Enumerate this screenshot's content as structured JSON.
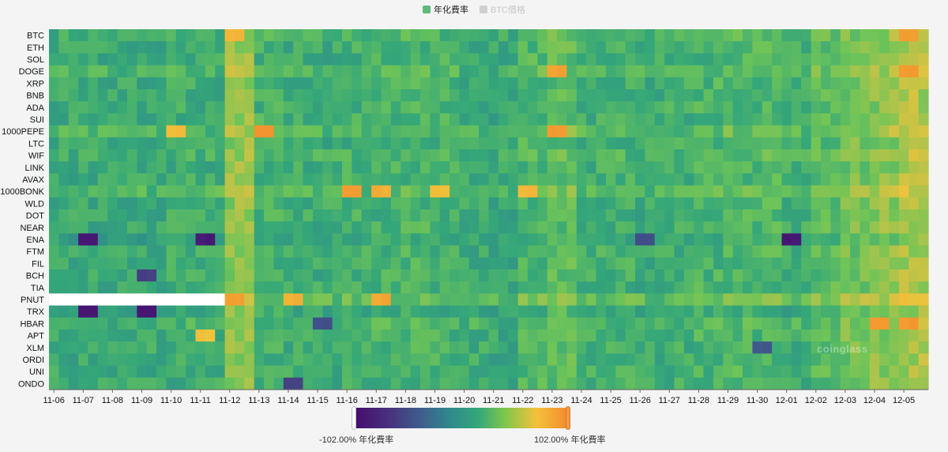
{
  "legend": {
    "funding_label": "年化費率",
    "btc_label": "BTC價格",
    "funding_color": "#5fba7d",
    "btc_color": "#d0d0d0"
  },
  "visual_map": {
    "min_label": "-102.00% 年化費率",
    "max_label": "102.00% 年化費率",
    "min_value": -102,
    "max_value": 102
  },
  "watermark": "coinglass",
  "chart_data": {
    "type": "heatmap",
    "title": "",
    "xlabel": "",
    "ylabel": "",
    "value_unit": "% 年化費率",
    "value_range": [
      -102,
      102
    ],
    "x_tick_labels": [
      "11-06",
      "11-07",
      "11-08",
      "11-09",
      "11-10",
      "11-11",
      "11-12",
      "11-13",
      "11-14",
      "11-15",
      "11-16",
      "11-17",
      "11-18",
      "11-19",
      "11-20",
      "11-21",
      "11-22",
      "11-23",
      "11-24",
      "11-25",
      "11-26",
      "11-27",
      "11-28",
      "11-29",
      "11-30",
      "12-01",
      "12-02",
      "12-03",
      "12-04",
      "12-05"
    ],
    "y_categories": [
      "BTC",
      "ETH",
      "SOL",
      "DOGE",
      "XRP",
      "BNB",
      "ADA",
      "SUI",
      "1000PEPE",
      "LTC",
      "WIF",
      "LINK",
      "AVAX",
      "1000BONK",
      "WLD",
      "DOT",
      "NEAR",
      "ENA",
      "FTM",
      "FIL",
      "BCH",
      "TIA",
      "PNUT",
      "TRX",
      "HBAR",
      "APT",
      "XLM",
      "ORDI",
      "UNI",
      "ONDO"
    ],
    "columns_per_day": 3,
    "typical_value": 11,
    "daily_level": [
      11,
      11,
      11,
      11,
      13,
      13,
      38,
      16,
      13,
      12,
      15,
      16,
      18,
      16,
      12,
      10,
      20,
      24,
      15,
      16,
      12,
      15,
      18,
      20,
      20,
      14,
      24,
      30,
      36,
      44
    ],
    "row_offsets": {
      "BTC": 3,
      "DOGE": 6,
      "1000PEPE": 8,
      "1000BONK": 8,
      "WIF": 4,
      "PNUT": 12,
      "HBAR": 4,
      "ENA": -6,
      "TRX": -4
    },
    "highlights": [
      {
        "coin": "BTC",
        "date": "11-12",
        "value": 70
      },
      {
        "coin": "BTC",
        "date": "12-05",
        "value": 88
      },
      {
        "coin": "DOGE",
        "date": "11-23",
        "value": 86
      },
      {
        "coin": "DOGE",
        "date": "12-05",
        "value": 88
      },
      {
        "coin": "1000PEPE",
        "date": "11-13",
        "value": 92
      },
      {
        "coin": "1000PEPE",
        "date": "11-23",
        "value": 92
      },
      {
        "coin": "1000PEPE",
        "date": "11-10",
        "value": 66
      },
      {
        "coin": "1000BONK",
        "date": "11-16",
        "value": 88
      },
      {
        "coin": "1000BONK",
        "date": "11-17",
        "value": 78
      },
      {
        "coin": "1000BONK",
        "date": "11-19",
        "value": 64
      },
      {
        "coin": "1000BONK",
        "date": "11-22",
        "value": 68
      },
      {
        "coin": "PNUT",
        "date": "11-12",
        "value": 84
      },
      {
        "coin": "PNUT",
        "date": "11-14",
        "value": 76
      },
      {
        "coin": "PNUT",
        "date": "11-17",
        "value": 82
      },
      {
        "coin": "HBAR",
        "date": "12-04",
        "value": 90
      },
      {
        "coin": "HBAR",
        "date": "12-05",
        "value": 92
      },
      {
        "coin": "APT",
        "date": "11-11",
        "value": 62
      },
      {
        "coin": "ENA",
        "date": "11-07",
        "value": -90
      },
      {
        "coin": "ENA",
        "date": "11-11",
        "value": -88
      },
      {
        "coin": "ENA",
        "date": "12-01",
        "value": -92
      },
      {
        "coin": "ENA",
        "date": "11-26",
        "value": -50
      },
      {
        "coin": "TRX",
        "date": "11-07",
        "value": -96
      },
      {
        "coin": "TRX",
        "date": "11-09",
        "value": -90
      },
      {
        "coin": "BCH",
        "date": "11-09",
        "value": -60
      },
      {
        "coin": "HBAR",
        "date": "11-15",
        "value": -48
      },
      {
        "coin": "ONDO",
        "date": "11-14",
        "value": -56
      },
      {
        "coin": "XLM",
        "date": "11-30",
        "value": -40
      }
    ],
    "missing": [
      {
        "coin": "PNUT",
        "from": "11-06",
        "to": "11-11"
      }
    ]
  }
}
